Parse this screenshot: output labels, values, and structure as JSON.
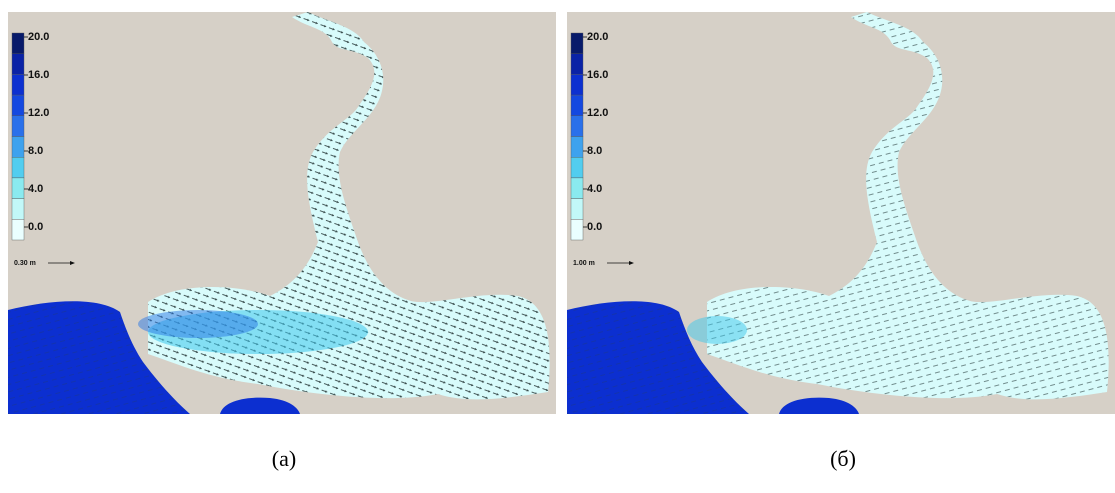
{
  "panels": [
    {
      "legend": [
        "20.0",
        "16.0",
        "12.0",
        "8.0",
        "4.0",
        "0.0"
      ],
      "scale_label": "0.30 m",
      "caption": "(a)"
    },
    {
      "legend": [
        "20.0",
        "16.0",
        "12.0",
        "8.0",
        "4.0",
        "0.0"
      ],
      "scale_label": "1.00 m",
      "caption": "(б)"
    }
  ]
}
